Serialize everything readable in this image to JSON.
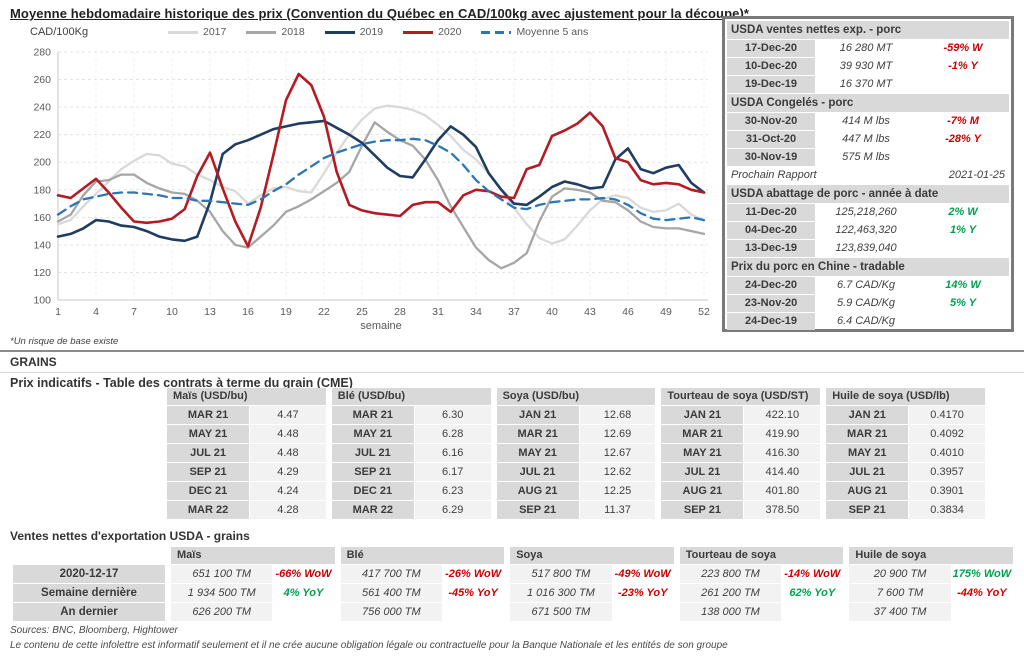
{
  "page": {
    "title": "Moyenne hebdomadaire historique des prix (Convention du Québec en CAD/100kg avec ajustement pour la découpe)*",
    "footnote": "*Un risque de base existe",
    "grains_label": "GRAINS",
    "cme_title": "Prix indicatifs - Table des contrats à terme du grain (CME)",
    "exports_title": "Ventes nettes d'exportation USDA - grains",
    "sources": "Sources: BNC, Bloomberg, Hightower",
    "disclaimer": "Le contenu de cette infolettre est informatif seulement et il ne crée aucune obligation légale ou contractuelle pour la Banque Nationale et les entités de son groupe"
  },
  "colors": {
    "red": "#cc0000",
    "green": "#00a050",
    "c2017": "#d9d9d9",
    "c2018": "#a6a6a6",
    "c2019": "#1f3c61",
    "c2020": "#b41c24",
    "cavg": "#2e75b6",
    "grid": "#e3e3e3",
    "axis": "#c8c8c8"
  },
  "chart_data": {
    "type": "line",
    "title": "Moyenne hebdomadaire historique des prix (Convention du Québec en CAD/100kg avec ajustement pour la découpe)*",
    "ylabel": "CAD/100Kg",
    "xlabel": "semaine",
    "ylim": [
      100,
      280
    ],
    "y_ticks": [
      100,
      120,
      140,
      160,
      180,
      200,
      220,
      240,
      260,
      280
    ],
    "x_ticks": [
      1,
      4,
      7,
      10,
      13,
      16,
      19,
      22,
      25,
      28,
      31,
      34,
      37,
      40,
      43,
      46,
      49,
      52
    ],
    "x": [
      1,
      2,
      3,
      4,
      5,
      6,
      7,
      8,
      9,
      10,
      11,
      12,
      13,
      14,
      15,
      16,
      17,
      18,
      19,
      20,
      21,
      22,
      23,
      24,
      25,
      26,
      27,
      28,
      29,
      30,
      31,
      32,
      33,
      34,
      35,
      36,
      37,
      38,
      39,
      40,
      41,
      42,
      43,
      44,
      45,
      46,
      47,
      48,
      49,
      50,
      51,
      52
    ],
    "grid": true,
    "legend_position": "top",
    "series": [
      {
        "name": "2017",
        "color_key": "c2017",
        "dash": false,
        "values": [
          155,
          158,
          168,
          177,
          186,
          195,
          201,
          206,
          205,
          199,
          197,
          191,
          187,
          182,
          179,
          170,
          176,
          181,
          182,
          179,
          178,
          192,
          207,
          220,
          231,
          239,
          241,
          240,
          238,
          234,
          227,
          219,
          209,
          202,
          192,
          180,
          167,
          155,
          145,
          141,
          144,
          154,
          165,
          173,
          176,
          174,
          167,
          164,
          165,
          170,
          162,
          158
        ]
      },
      {
        "name": "2018",
        "color_key": "c2018",
        "dash": false,
        "values": [
          157,
          162,
          176,
          186,
          187,
          191,
          191,
          185,
          181,
          178,
          177,
          172,
          164,
          150,
          140,
          138,
          146,
          154,
          164,
          168,
          173,
          179,
          185,
          193,
          212,
          229,
          222,
          216,
          212,
          202,
          187,
          168,
          153,
          138,
          129,
          123,
          127,
          134,
          157,
          175,
          181,
          180,
          178,
          172,
          171,
          165,
          157,
          153,
          152,
          152,
          150,
          148
        ]
      },
      {
        "name": "2019",
        "color_key": "c2019",
        "dash": false,
        "values": [
          146,
          148,
          152,
          158,
          157,
          154,
          153,
          150,
          146,
          144,
          143,
          146,
          171,
          206,
          213,
          216,
          220,
          224,
          226,
          228,
          229,
          230,
          225,
          220,
          214,
          205,
          196,
          190,
          189,
          202,
          216,
          226,
          220,
          211,
          192,
          180,
          170,
          169,
          175,
          182,
          186,
          184,
          181,
          182,
          202,
          210,
          195,
          192,
          196,
          198,
          185,
          178
        ]
      },
      {
        "name": "2020",
        "color_key": "c2020",
        "dash": false,
        "values": [
          176,
          174,
          181,
          188,
          178,
          167,
          157,
          156,
          157,
          159,
          166,
          190,
          207,
          181,
          157,
          139,
          167,
          205,
          245,
          264,
          256,
          233,
          193,
          169,
          165,
          163,
          162,
          161,
          169,
          171,
          171,
          164,
          176,
          180,
          179,
          175,
          174,
          195,
          198,
          219,
          223,
          228,
          236,
          226,
          203,
          200,
          187,
          184,
          185,
          184,
          180,
          178
        ]
      },
      {
        "name": "Moyenne 5 ans",
        "color_key": "cavg",
        "dash": true,
        "values": [
          162,
          168,
          173,
          175,
          177,
          178,
          178,
          177,
          176,
          174,
          174,
          172,
          172,
          171,
          170,
          169,
          173,
          179,
          184,
          191,
          197,
          203,
          207,
          210,
          213,
          215,
          216,
          216,
          217,
          216,
          212,
          207,
          198,
          187,
          179,
          173,
          167,
          166,
          169,
          171,
          172,
          173,
          173,
          174,
          173,
          169,
          163,
          159,
          158,
          159,
          160,
          158
        ]
      }
    ]
  },
  "pork_panel": {
    "blocks": [
      {
        "type": "section",
        "header": "USDA ventes nettes exp. - porc",
        "rows": [
          [
            "17-Dec-20",
            "16 280  MT",
            "-59% W",
            "red"
          ],
          [
            "10-Dec-20",
            "39 930  MT",
            "-1% Y",
            "red"
          ],
          [
            "19-Dec-19",
            "16 370  MT",
            "",
            ""
          ]
        ]
      },
      {
        "type": "section",
        "header": "USDA Congelés - porc",
        "rows": [
          [
            "30-Nov-20",
            "414 M lbs",
            "-7% M",
            "red"
          ],
          [
            "31-Oct-20",
            "447 M lbs",
            "-28% Y",
            "red"
          ],
          [
            "30-Nov-19",
            "575 M lbs",
            "",
            ""
          ]
        ]
      },
      {
        "type": "note",
        "label": "Prochain Rapport",
        "value": "2021-01-25"
      },
      {
        "type": "section",
        "header": "USDA abattage de porc - année à date",
        "rows": [
          [
            "11-Dec-20",
            "125,218,260",
            "2% W",
            "green"
          ],
          [
            "04-Dec-20",
            "122,463,320",
            "1% Y",
            "green"
          ],
          [
            "13-Dec-19",
            "123,839,040",
            "",
            ""
          ]
        ]
      },
      {
        "type": "section",
        "header": "Prix du porc en Chine - tradable",
        "rows": [
          [
            "24-Dec-20",
            "6.7 CAD/Kg",
            "14% W",
            "green"
          ],
          [
            "23-Nov-20",
            "5.9 CAD/Kg",
            "5% Y",
            "green"
          ],
          [
            "24-Dec-19",
            "6.4 CAD/Kg",
            "",
            ""
          ]
        ]
      }
    ]
  },
  "futures": [
    {
      "header": "Maïs (USD/bu)",
      "rows": [
        [
          "MAR 21",
          "4.47"
        ],
        [
          "MAY 21",
          "4.48"
        ],
        [
          "JUL 21",
          "4.48"
        ],
        [
          "SEP 21",
          "4.29"
        ],
        [
          "DEC 21",
          "4.24"
        ],
        [
          "MAR 22",
          "4.28"
        ]
      ]
    },
    {
      "header": "Blé (USD/bu)",
      "rows": [
        [
          "MAR 21",
          "6.30"
        ],
        [
          "MAY 21",
          "6.28"
        ],
        [
          "JUL 21",
          "6.16"
        ],
        [
          "SEP 21",
          "6.17"
        ],
        [
          "DEC 21",
          "6.23"
        ],
        [
          "MAR 22",
          "6.29"
        ]
      ]
    },
    {
      "header": "Soya (USD/bu)",
      "rows": [
        [
          "JAN 21",
          "12.68"
        ],
        [
          "MAR 21",
          "12.69"
        ],
        [
          "MAY 21",
          "12.67"
        ],
        [
          "JUL 21",
          "12.62"
        ],
        [
          "AUG 21",
          "12.25"
        ],
        [
          "SEP 21",
          "11.37"
        ]
      ]
    },
    {
      "header": "Tourteau de soya (USD/ST)",
      "rows": [
        [
          "JAN 21",
          "422.10"
        ],
        [
          "MAR 21",
          "419.90"
        ],
        [
          "MAY 21",
          "416.30"
        ],
        [
          "JUL 21",
          "414.40"
        ],
        [
          "AUG 21",
          "401.80"
        ],
        [
          "SEP 21",
          "378.50"
        ]
      ]
    },
    {
      "header": "Huile de soya (USD/lb)",
      "rows": [
        [
          "JAN 21",
          "0.4170"
        ],
        [
          "MAR 21",
          "0.4092"
        ],
        [
          "MAY 21",
          "0.4010"
        ],
        [
          "JUL 21",
          "0.3957"
        ],
        [
          "AUG 21",
          "0.3901"
        ],
        [
          "SEP 21",
          "0.3834"
        ]
      ]
    }
  ],
  "exports": {
    "row_labels": [
      "2020-12-17",
      "Semaine dernière",
      "An dernier"
    ],
    "columns": [
      {
        "header": "Maïs",
        "cells": [
          [
            "651 100 TM",
            "-66% WoW",
            "red"
          ],
          [
            "1 934 500 TM",
            "4% YoY",
            "green"
          ],
          [
            "626 200 TM",
            "",
            ""
          ]
        ]
      },
      {
        "header": "Blé",
        "cells": [
          [
            "417 700 TM",
            "-26% WoW",
            "red"
          ],
          [
            "561 400 TM",
            "-45% YoY",
            "red"
          ],
          [
            "756 000 TM",
            "",
            ""
          ]
        ]
      },
      {
        "header": "Soya",
        "cells": [
          [
            "517 800 TM",
            "-49% WoW",
            "red"
          ],
          [
            "1 016 300 TM",
            "-23% YoY",
            "red"
          ],
          [
            "671 500 TM",
            "",
            ""
          ]
        ]
      },
      {
        "header": "Tourteau de soya",
        "cells": [
          [
            "223 800 TM",
            "-14% WoW",
            "red"
          ],
          [
            "261 200 TM",
            "62% YoY",
            "green"
          ],
          [
            "138 000 TM",
            "",
            ""
          ]
        ]
      },
      {
        "header": "Huile de soya",
        "cells": [
          [
            "20 900 TM",
            "175% WoW",
            "green"
          ],
          [
            "7 600 TM",
            "-44% YoY",
            "red"
          ],
          [
            "37 400 TM",
            "",
            ""
          ]
        ]
      }
    ]
  }
}
